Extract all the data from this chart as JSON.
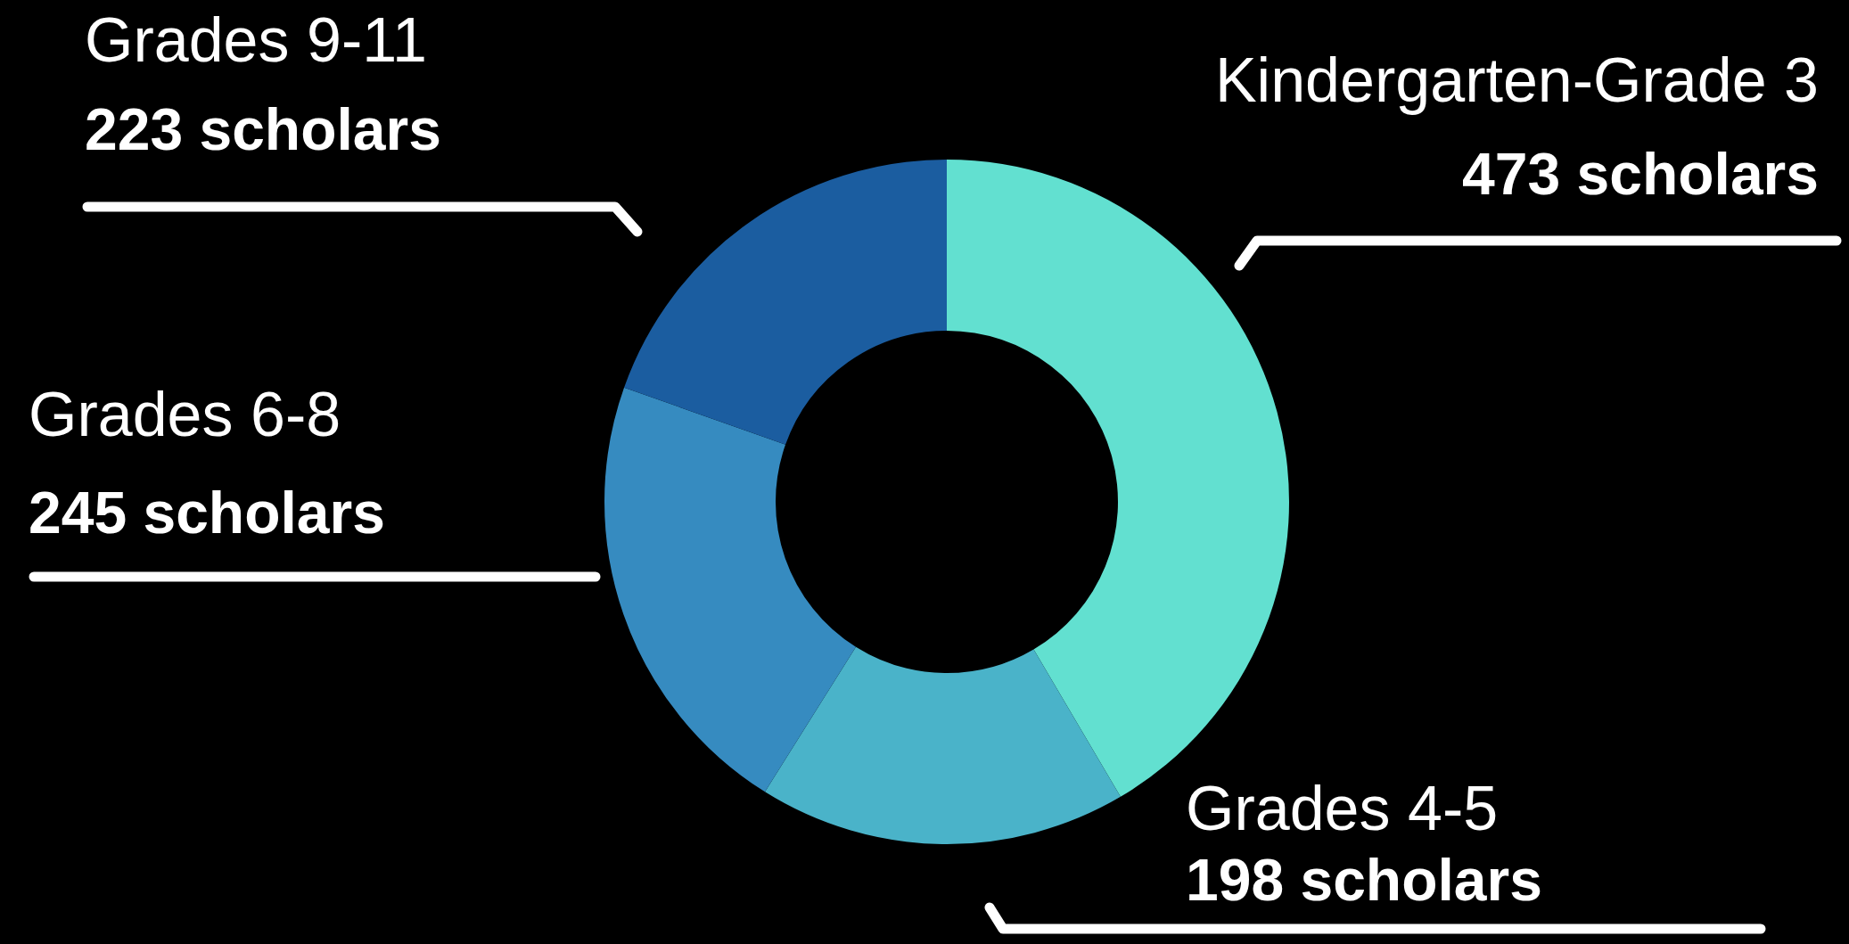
{
  "chart_data": {
    "type": "donut",
    "categories": [
      "Kindergarten-Grade 3",
      "Grades 4-5",
      "Grades 6-8",
      "Grades 9-11"
    ],
    "values": [
      473,
      198,
      245,
      223
    ],
    "value_labels": [
      "473 scholars",
      "198 scholars",
      "245 scholars",
      "223 scholars"
    ],
    "colors": [
      "#62e0d0",
      "#4ab3c9",
      "#368bc0",
      "#1b5da0"
    ],
    "legend": false
  }
}
